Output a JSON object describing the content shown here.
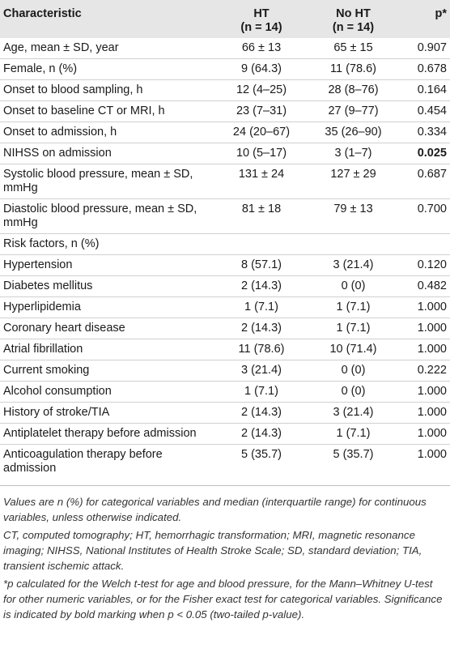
{
  "table": {
    "headers": {
      "characteristic": "Characteristic",
      "ht": "HT",
      "ht_n": "(n = 14)",
      "noht": "No HT",
      "noht_n": "(n = 14)",
      "p": "p*"
    },
    "rows": [
      {
        "label": "Age, mean ± SD, year",
        "ht": "66 ± 13",
        "noht": "65 ± 15",
        "p": "0.907"
      },
      {
        "label": "Female, n (%)",
        "ht": "9 (64.3)",
        "noht": "11 (78.6)",
        "p": "0.678"
      },
      {
        "label": "Onset to blood sampling, h",
        "ht": "12 (4–25)",
        "noht": "28 (8–76)",
        "p": "0.164"
      },
      {
        "label": "Onset to baseline CT or MRI, h",
        "ht": "23 (7–31)",
        "noht": "27 (9–77)",
        "p": "0.454"
      },
      {
        "label": "Onset to admission, h",
        "ht": "24 (20–67)",
        "noht": "35 (26–90)",
        "p": "0.334"
      },
      {
        "label": "NIHSS on admission",
        "ht": "10 (5–17)",
        "noht": "3 (1–7)",
        "p": "0.025"
      },
      {
        "label": "Systolic blood pressure, mean ± SD, mmHg",
        "ht": "131 ± 24",
        "noht": "127 ± 29",
        "p": "0.687"
      },
      {
        "label": "Diastolic blood pressure, mean ± SD, mmHg",
        "ht": "81 ± 18",
        "noht": "79 ± 13",
        "p": "0.700"
      },
      {
        "label": "Risk factors, n (%)",
        "ht": "",
        "noht": "",
        "p": ""
      },
      {
        "label": "Hypertension",
        "ht": "8 (57.1)",
        "noht": "3 (21.4)",
        "p": "0.120"
      },
      {
        "label": "Diabetes mellitus",
        "ht": "2 (14.3)",
        "noht": "0 (0)",
        "p": "0.482"
      },
      {
        "label": "Hyperlipidemia",
        "ht": "1 (7.1)",
        "noht": "1 (7.1)",
        "p": "1.000"
      },
      {
        "label": "Coronary heart disease",
        "ht": "2 (14.3)",
        "noht": "1 (7.1)",
        "p": "1.000"
      },
      {
        "label": "Atrial fibrillation",
        "ht": "11 (78.6)",
        "noht": "10 (71.4)",
        "p": "1.000"
      },
      {
        "label": "Current smoking",
        "ht": "3 (21.4)",
        "noht": "0 (0)",
        "p": "0.222"
      },
      {
        "label": "Alcohol consumption",
        "ht": "1 (7.1)",
        "noht": "0 (0)",
        "p": "1.000"
      },
      {
        "label": "History of stroke/TIA",
        "ht": "2 (14.3)",
        "noht": "3 (21.4)",
        "p": "1.000"
      },
      {
        "label": "Antiplatelet therapy before admission",
        "ht": "2 (14.3)",
        "noht": "1 (7.1)",
        "p": "1.000"
      },
      {
        "label": "Anticoagulation therapy before admission",
        "ht": "5 (35.7)",
        "noht": "5 (35.7)",
        "p": "1.000"
      }
    ]
  },
  "footnotes": {
    "values": "Values are n (%) for categorical variables and median (interquartile range) for continuous variables, unless otherwise indicated.",
    "abbreviations": "CT, computed tomography; HT, hemorrhagic transformation; MRI, magnetic resonance imaging; NIHSS, National Institutes of Health Stroke Scale; SD, standard deviation; TIA, transient ischemic attack.",
    "pvalue": "*p calculated for the Welch t-test for age and blood pressure, for the Mann–Whitney U-test for other numeric variables, or for the Fisher exact test for categorical variables. Significance is indicated by bold marking when p < 0.05 (two-tailed p-value)."
  },
  "colors": {
    "header_bg": "#e6e6e6",
    "row_divider": "#d0d0d0",
    "text": "#1a1a1a"
  }
}
